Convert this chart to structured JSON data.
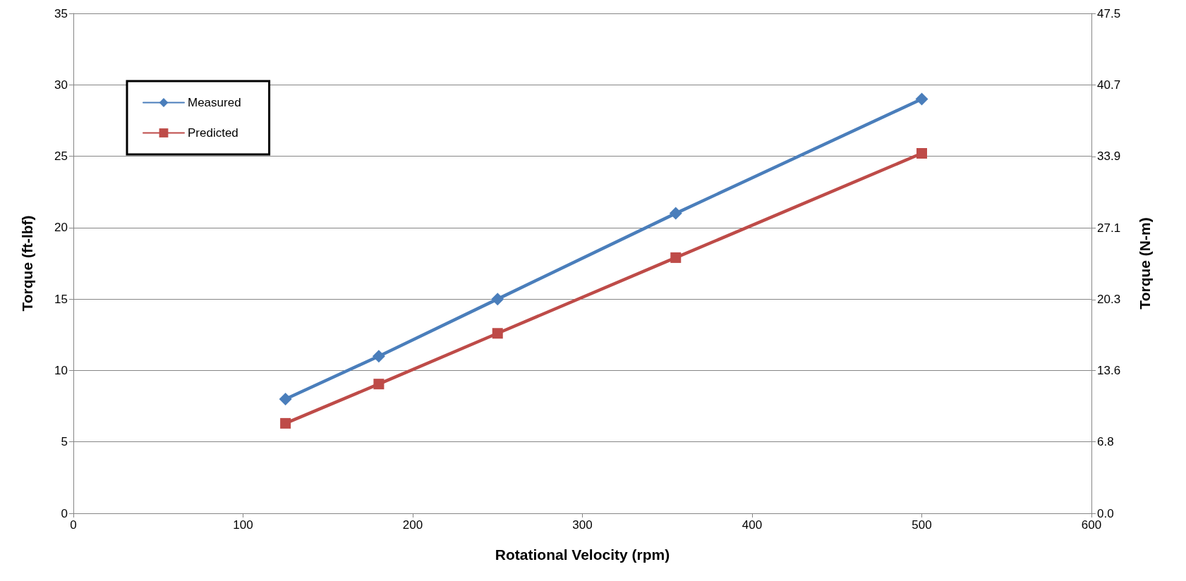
{
  "chart_data": {
    "type": "line",
    "xlabel": "Rotational Velocity (rpm)",
    "ylabel": "Torque (ft-lbf)",
    "y2label": "Torque (N-m)",
    "series": [
      {
        "name": "Measured",
        "color": "#4a7ebb",
        "marker": "diamond",
        "x": [
          125,
          180,
          250,
          355,
          500
        ],
        "values": [
          8,
          11,
          15,
          21,
          29
        ]
      },
      {
        "name": "Predicted",
        "color": "#be4b48",
        "marker": "square",
        "x": [
          125,
          180,
          250,
          355,
          500
        ],
        "values": [
          6.3,
          9.05,
          12.6,
          17.9,
          25.2
        ]
      }
    ],
    "xlim": [
      0,
      600
    ],
    "xticks": [
      0,
      100,
      200,
      300,
      400,
      500,
      600
    ],
    "ylim": [
      0,
      35
    ],
    "yticks": [
      0,
      5,
      10,
      15,
      20,
      25,
      30,
      35
    ],
    "y2lim": [
      0,
      47.5
    ],
    "y2ticks": [
      {
        "value": 0,
        "label": "0.0"
      },
      6.8,
      13.6,
      20.3,
      27.1,
      33.9,
      40.7,
      47.5
    ],
    "grid": "y",
    "legend": "top left",
    "line_style": "solid"
  }
}
